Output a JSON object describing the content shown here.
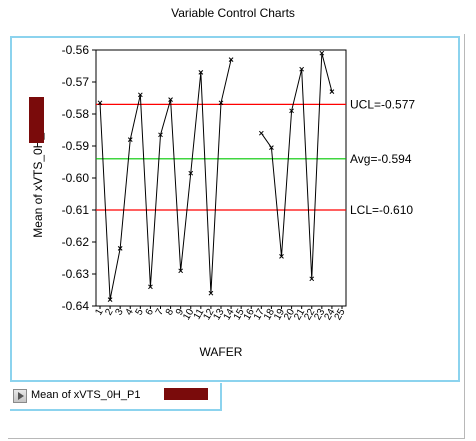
{
  "window": {
    "title": "Variable Control Charts"
  },
  "status": {
    "label": "Mean of xVTS_0H_P1"
  },
  "colors": {
    "control_limit": "#ff0000",
    "average": "#00c800",
    "series": "#000000",
    "frame_accent": "#8cd3ee"
  },
  "chart_data": {
    "type": "line",
    "title": "",
    "xlabel": "WAFER",
    "ylabel": "Mean of xVTS_0H_P1",
    "ylim": [
      -0.64,
      -0.56
    ],
    "yticks": [
      -0.64,
      -0.63,
      -0.62,
      -0.61,
      -0.6,
      -0.59,
      -0.58,
      -0.57,
      -0.56
    ],
    "ytick_labels": [
      "-0.64",
      "-0.63",
      "-0.62",
      "-0.61",
      "-0.60",
      "-0.59",
      "-0.58",
      "-0.57",
      "-0.56"
    ],
    "x": [
      1,
      2,
      3,
      4,
      5,
      6,
      7,
      8,
      9,
      10,
      11,
      12,
      13,
      14,
      15,
      16,
      17,
      18,
      19,
      20,
      21,
      22,
      23,
      24,
      25
    ],
    "xtick_labels": [
      "1",
      "2",
      "3",
      "4",
      "5",
      "6",
      "7",
      "8",
      "9",
      "10",
      "11",
      "12",
      "13",
      "14",
      "15",
      "16",
      "17",
      "18",
      "19",
      "20",
      "21",
      "22",
      "23",
      "24",
      "25"
    ],
    "series": [
      {
        "name": "",
        "values": [
          -0.5765,
          -0.638,
          -0.622,
          -0.588,
          -0.574,
          -0.634,
          -0.5865,
          -0.5755,
          -0.629,
          -0.5985,
          -0.567,
          -0.636,
          -0.5765,
          -0.563,
          null,
          null,
          -0.586,
          -0.5905,
          -0.6245,
          -0.579,
          -0.566,
          -0.6315,
          -0.561,
          -0.573,
          null
        ]
      }
    ],
    "reference_lines": [
      {
        "label": "UCL=-0.577",
        "value": -0.577,
        "role": "ucl"
      },
      {
        "label": "Avg=-0.594",
        "value": -0.594,
        "role": "avg"
      },
      {
        "label": "LCL=-0.610",
        "value": -0.61,
        "role": "lcl"
      }
    ],
    "grid": false,
    "legend": "none"
  }
}
